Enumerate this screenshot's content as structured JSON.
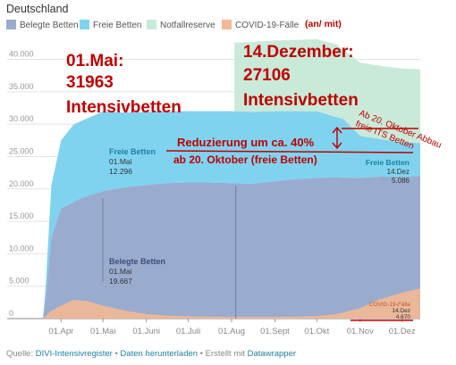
{
  "header": {
    "title": "Deutschland"
  },
  "legend": {
    "items": [
      {
        "label": "Belegte Betten",
        "color": "#9aacce"
      },
      {
        "label": "Freie Betten",
        "color": "#7fd3ef"
      },
      {
        "label": "Notfallreserve",
        "color": "#c9ead9"
      },
      {
        "label": "COVID-19-Fälle",
        "color": "#f3b894"
      }
    ],
    "note": "(an/ mit)"
  },
  "chart_data": {
    "type": "area",
    "title": "Deutschland",
    "xlabel": "",
    "ylabel": "",
    "x_ticks": [
      "01.Apr",
      "01.Mai",
      "01.Juni",
      "01.Juli",
      "01.Aug",
      "01.Sept",
      "01.Okt",
      "01.Nov",
      "01.Dez"
    ],
    "y_ticks": [
      "0",
      "5.000",
      "10.000",
      "15.000",
      "20.000",
      "25.000",
      "30.000",
      "35.000",
      "40.000"
    ],
    "ylim": [
      0,
      42000
    ],
    "grid": true,
    "legend_position": "top",
    "series": [
      {
        "name": "Belegte Betten",
        "color": "#9aacce",
        "x": [
          "2020-03-19",
          "2020-03-21",
          "2020-03-25",
          "2020-04-01",
          "2020-04-15",
          "2020-05-01",
          "2020-05-15",
          "2020-06-01",
          "2020-06-15",
          "2020-07-01",
          "2020-07-15",
          "2020-08-01",
          "2020-08-15",
          "2020-09-01",
          "2020-09-15",
          "2020-10-01",
          "2020-10-15",
          "2020-11-01",
          "2020-11-15",
          "2020-12-01",
          "2020-12-14"
        ],
        "y": [
          0,
          3000,
          12500,
          17000,
          18500,
          19667,
          20200,
          20600,
          20900,
          21000,
          21000,
          20900,
          20800,
          21200,
          21500,
          21700,
          21800,
          21700,
          21900,
          21900,
          22000
        ]
      },
      {
        "name": "Freie Betten",
        "color": "#7fd3ef",
        "x": [
          "2020-03-19",
          "2020-03-21",
          "2020-03-25",
          "2020-04-01",
          "2020-04-10",
          "2020-05-01",
          "2020-05-15",
          "2020-06-01",
          "2020-06-15",
          "2020-07-01",
          "2020-07-15",
          "2020-08-01",
          "2020-08-15",
          "2020-09-01",
          "2020-09-15",
          "2020-10-01",
          "2020-10-20",
          "2020-11-01",
          "2020-11-15",
          "2020-12-01",
          "2020-12-14"
        ],
        "y": [
          0,
          2000,
          8000,
          10500,
          12000,
          12296,
          11600,
          11300,
          11100,
          11000,
          11000,
          11100,
          11100,
          10800,
          10500,
          10300,
          9000,
          6500,
          5800,
          5300,
          5086
        ]
      },
      {
        "name": "Notfallreserve",
        "color": "#c9ead9",
        "x": [
          "2020-08-03",
          "2020-08-15",
          "2020-09-01",
          "2020-09-15",
          "2020-10-01",
          "2020-10-15",
          "2020-11-01",
          "2020-11-15",
          "2020-12-01",
          "2020-12-14"
        ],
        "y": [
          10600,
          10800,
          10900,
          11000,
          11100,
          11200,
          11300,
          11300,
          11400,
          11400
        ]
      },
      {
        "name": "COVID-19-Fälle",
        "color": "#f3b894",
        "x": [
          "2020-03-19",
          "2020-03-25",
          "2020-04-01",
          "2020-04-10",
          "2020-04-20",
          "2020-05-01",
          "2020-05-15",
          "2020-06-01",
          "2020-06-15",
          "2020-07-01",
          "2020-08-01",
          "2020-09-01",
          "2020-09-15",
          "2020-10-01",
          "2020-10-15",
          "2020-11-01",
          "2020-11-15",
          "2020-12-01",
          "2020-12-14"
        ],
        "y": [
          0,
          1200,
          2000,
          2900,
          2700,
          2000,
          1300,
          700,
          500,
          350,
          250,
          250,
          300,
          400,
          700,
          1600,
          3000,
          4000,
          4670
        ]
      }
    ],
    "point_labels": [
      {
        "series": "Freie Betten",
        "name": "Freie Betten",
        "date": "01.Mai",
        "value": "12.296"
      },
      {
        "series": "Belegte Betten",
        "name": "Belegte Betten",
        "date": "01.Mai",
        "value": "19.667"
      },
      {
        "series": "Freie Betten",
        "name": "Freie Betten",
        "date": "14.Dez",
        "value": "5.086"
      },
      {
        "series": "COVID-19-Fälle",
        "name": "COVID-19-Fälle",
        "date": "14.Dez",
        "value": "4.670"
      }
    ],
    "annotations": {
      "may_line1": "01.Mai:",
      "may_line2": "31963",
      "may_line3": "Intensivbetten",
      "dec_line1": "14.Dezember:",
      "dec_line2": "27106",
      "dec_line3": "Intensivbetten",
      "reduction_line1": "Reduzierung um ca. 40%",
      "reduction_line2": "ab 20. Oktober (freie Betten)",
      "abbau_line1": "Ab 20. Oktober Abbau",
      "abbau_line2": "freie ITS Betten"
    }
  },
  "footer": {
    "prefix": "Quelle: ",
    "source_link": "DIVI-Intensivregister",
    "sep1": " • ",
    "download_link": "Daten herunterladen",
    "sep2": " • Erstellt mit ",
    "tool_link": "Datawrapper"
  }
}
